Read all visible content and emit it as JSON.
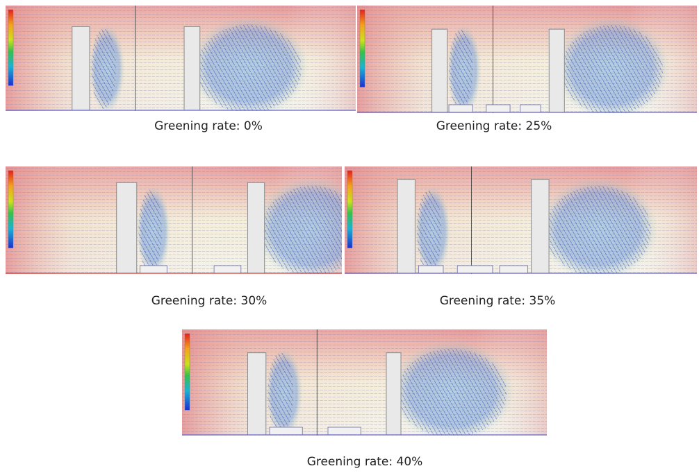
{
  "panels": [
    {
      "caption": "Greening rate: 0%"
    },
    {
      "caption": "Greening rate: 25%"
    },
    {
      "caption": "Greening rate: 30%"
    },
    {
      "caption": "Greening rate: 35%"
    },
    {
      "caption": "Greening rate: 40%"
    }
  ]
}
